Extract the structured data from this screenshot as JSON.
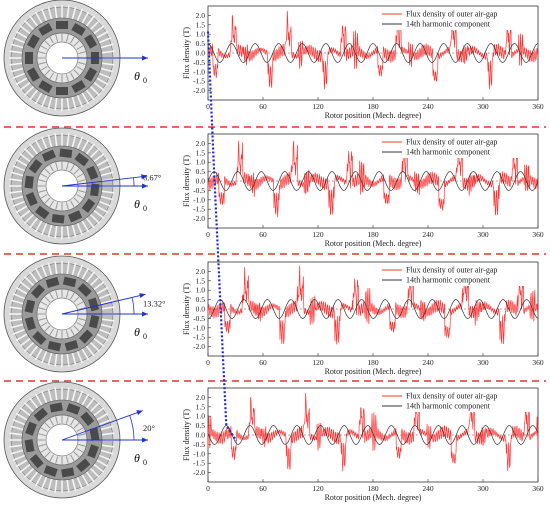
{
  "panels": [
    {
      "angle_label": "",
      "rotor_angle_deg": 0
    },
    {
      "angle_label": "6.67°",
      "rotor_angle_deg": 6.67
    },
    {
      "angle_label": "13.32°",
      "rotor_angle_deg": 13.32
    },
    {
      "angle_label": "20°",
      "rotor_angle_deg": 20
    }
  ],
  "theta_symbol": "θ",
  "theta_subscript": "0",
  "colors": {
    "flux": "#ff3333",
    "harmonic": "#333333",
    "divider": "#e63030",
    "tracker": "#1a2ecc",
    "rotor_arrow": "#2233cc"
  },
  "chart_data": [
    {
      "type": "line",
      "xlabel": "Rotor position (Mech. degree)",
      "ylabel": "Flux density (T)",
      "xlim": [
        0,
        360
      ],
      "ylim": [
        -2.5,
        2.5
      ],
      "xticks": [
        "0",
        "60",
        "120",
        "180",
        "240",
        "300",
        "360"
      ],
      "yticks": [
        "-2.0",
        "-1.5",
        "-1.0",
        "-0.5",
        "0.0",
        "0.5",
        "1.0",
        "1.5",
        "2.0"
      ],
      "series": [
        {
          "name": "Flux density of outer air-gap",
          "phase_deg": 0
        },
        {
          "name": "14th harmonic component",
          "amplitude": 0.5,
          "harmonic_order": 14,
          "phase_deg": 0
        }
      ]
    },
    {
      "type": "line",
      "xlabel": "Rotor position (Mech. degree)",
      "ylabel": "Flux density (T)",
      "xlim": [
        0,
        360
      ],
      "ylim": [
        -2.5,
        2.5
      ],
      "xticks": [
        "0",
        "60",
        "120",
        "180",
        "240",
        "300",
        "360"
      ],
      "yticks": [
        "-2.0",
        "-1.5",
        "-1.0",
        "-0.5",
        "0.0",
        "0.5",
        "1.0",
        "1.5",
        "2.0"
      ],
      "series": [
        {
          "name": "Flux density of outer air-gap",
          "phase_deg": 6.67
        },
        {
          "name": "14th harmonic component",
          "amplitude": 0.5,
          "harmonic_order": 14,
          "phase_deg": 6.67
        }
      ]
    },
    {
      "type": "line",
      "xlabel": "Rotor position (Mech. degree)",
      "ylabel": "Flux density (T)",
      "xlim": [
        0,
        360
      ],
      "ylim": [
        -2.5,
        2.5
      ],
      "xticks": [
        "0",
        "60",
        "120",
        "180",
        "240",
        "300",
        "360"
      ],
      "yticks": [
        "-2.0",
        "-1.5",
        "-1.0",
        "-0.5",
        "0.0",
        "0.5",
        "1.0",
        "1.5",
        "2.0"
      ],
      "series": [
        {
          "name": "Flux density of outer air-gap",
          "phase_deg": 13.32
        },
        {
          "name": "14th harmonic component",
          "amplitude": 0.5,
          "harmonic_order": 14,
          "phase_deg": 13.32
        }
      ]
    },
    {
      "type": "line",
      "xlabel": "Rotor position (Mech. degree)",
      "ylabel": "Flux density (T)",
      "xlim": [
        0,
        360
      ],
      "ylim": [
        -2.5,
        2.5
      ],
      "xticks": [
        "0",
        "60",
        "120",
        "180",
        "240",
        "300",
        "360"
      ],
      "yticks": [
        "-2.0",
        "-1.5",
        "-1.0",
        "-0.5",
        "0.0",
        "0.5",
        "1.0",
        "1.5",
        "2.0"
      ],
      "series": [
        {
          "name": "Flux density of outer air-gap",
          "phase_deg": 20
        },
        {
          "name": "14th harmonic component",
          "amplitude": 0.5,
          "harmonic_order": 14,
          "phase_deg": 20
        }
      ]
    }
  ]
}
